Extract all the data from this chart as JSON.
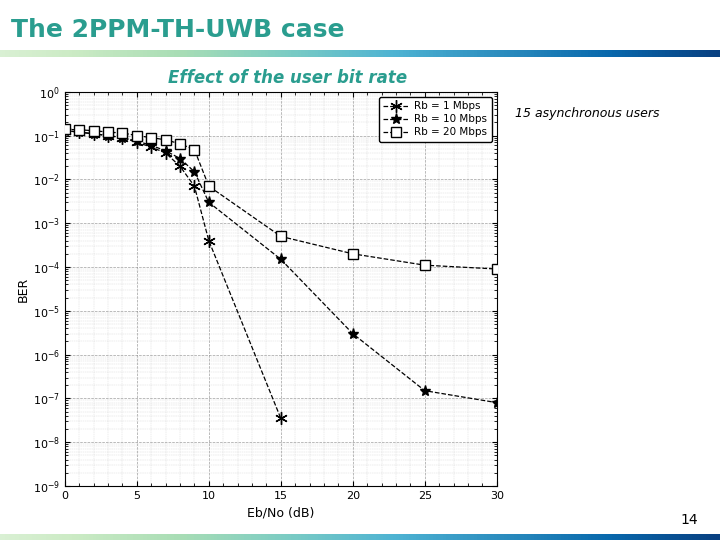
{
  "title_main": "The 2PPM-TH-UWB case",
  "title_sub": "Effect of the user bit rate",
  "annotation": "15 asynchronous users",
  "xlabel": "Eb/No (dB)",
  "ylabel": "BER",
  "xlim": [
    0,
    30
  ],
  "background_color": "#ffffff",
  "title_color": "#2a9d8f",
  "subtitle_color": "#2a9d8f",
  "header_line_color_left": "#ffffff",
  "header_line_color_right": "#2a9d8f",
  "page_number": "14",
  "rb1_x": [
    0,
    1,
    2,
    3,
    4,
    5,
    6,
    7,
    8,
    9,
    10,
    15
  ],
  "rb1_y": [
    0.13,
    0.12,
    0.11,
    0.1,
    0.09,
    0.07,
    0.055,
    0.04,
    0.02,
    0.007,
    0.0004,
    3.5e-08
  ],
  "rb10_x": [
    0,
    1,
    2,
    3,
    4,
    5,
    6,
    7,
    8,
    9,
    10,
    15,
    20,
    25,
    30
  ],
  "rb10_y": [
    0.13,
    0.12,
    0.11,
    0.1,
    0.09,
    0.075,
    0.06,
    0.045,
    0.03,
    0.015,
    0.003,
    0.00015,
    3e-06,
    1.5e-07,
    8e-08
  ],
  "rb20_x": [
    0,
    1,
    2,
    3,
    4,
    5,
    6,
    7,
    8,
    9,
    10,
    15,
    20,
    25,
    30
  ],
  "rb20_y": [
    0.14,
    0.135,
    0.13,
    0.12,
    0.115,
    0.1,
    0.09,
    0.08,
    0.065,
    0.048,
    0.007,
    0.0005,
    0.0002,
    0.00011,
    9e-05
  ]
}
